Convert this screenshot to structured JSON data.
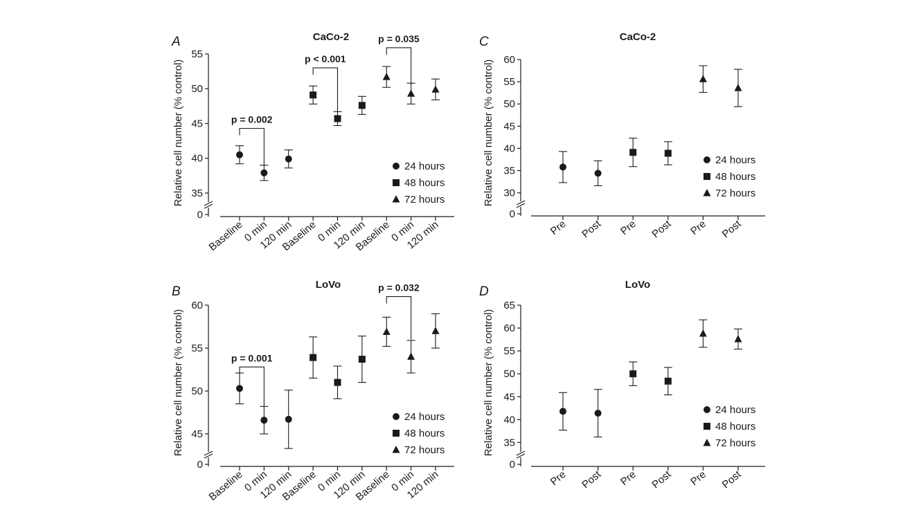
{
  "chart_data": [
    {
      "panel": "A",
      "type": "scatter",
      "title": "CaCo-2",
      "ylabel": "Relative cell number (% control)",
      "categories": [
        "Baseline",
        "0 min",
        "120 min",
        "Baseline",
        "0 min",
        "120 min",
        "Baseline",
        "0 min",
        "120 min"
      ],
      "yticks": [
        "0",
        "35",
        "40",
        "45",
        "50",
        "55"
      ],
      "ylim": [
        33.3,
        55
      ],
      "axis_break": true,
      "legend_position": "lower-right",
      "series": [
        {
          "name": "24 hours",
          "marker": "circle",
          "x_index": [
            0,
            1,
            2
          ],
          "values": [
            40.5,
            37.9,
            39.9
          ],
          "err": [
            1.3,
            1.1,
            1.3
          ]
        },
        {
          "name": "48 hours",
          "marker": "square",
          "x_index": [
            3,
            4,
            5
          ],
          "values": [
            49.1,
            45.7,
            47.6
          ],
          "err": [
            1.3,
            1.0,
            1.3
          ]
        },
        {
          "name": "72 hours",
          "marker": "triangle",
          "x_index": [
            6,
            7,
            8
          ],
          "values": [
            51.7,
            49.3,
            49.9
          ],
          "err": [
            1.5,
            1.5,
            1.5
          ]
        }
      ],
      "annotations": [
        {
          "text": "p = 0.002",
          "from": 0,
          "to": 1,
          "bracket_y": 44.3,
          "drop_to": 38.9
        },
        {
          "text": "p < 0.001",
          "from": 3,
          "to": 4,
          "bracket_y": 53.0,
          "drop_to": 46.7
        },
        {
          "text": "p = 0.035",
          "from": 6,
          "to": 7,
          "bracket_y": 55.9,
          "drop_to": 50.6
        }
      ]
    },
    {
      "panel": "B",
      "type": "scatter",
      "title": "LoVo",
      "ylabel": "Relative cell number (% control)",
      "categories": [
        "Baseline",
        "0 min",
        "120 min",
        "Baseline",
        "0 min",
        "120 min",
        "Baseline",
        "0 min",
        "120 min"
      ],
      "yticks": [
        "0",
        "45",
        "50",
        "55",
        "60"
      ],
      "ylim": [
        42.5,
        60
      ],
      "axis_break": true,
      "legend_position": "lower-right",
      "series": [
        {
          "name": "24 hours",
          "marker": "circle",
          "x_index": [
            0,
            1,
            2
          ],
          "values": [
            50.3,
            46.6,
            46.7
          ],
          "err": [
            1.8,
            1.6,
            3.4
          ]
        },
        {
          "name": "48 hours",
          "marker": "square",
          "x_index": [
            3,
            4,
            5
          ],
          "values": [
            53.9,
            51.0,
            53.7
          ],
          "err": [
            2.4,
            1.9,
            2.7
          ]
        },
        {
          "name": "72 hours",
          "marker": "triangle",
          "x_index": [
            6,
            7,
            8
          ],
          "values": [
            56.9,
            54.0,
            57.0
          ],
          "err": [
            1.7,
            1.9,
            2.0
          ]
        }
      ],
      "annotations": [
        {
          "text": "p = 0.001",
          "from": 0,
          "to": 1,
          "bracket_y": 52.8,
          "drop_to": 48.2
        },
        {
          "text": "p = 0.032",
          "from": 6,
          "to": 7,
          "bracket_y": 61.0,
          "drop_to": 56.0
        }
      ]
    },
    {
      "panel": "C",
      "type": "scatter",
      "title": "CaCo-2",
      "ylabel": "Relative cell number (% control)",
      "categories": [
        "Pre",
        "Post",
        "Pre",
        "Post",
        "Pre",
        "Post"
      ],
      "yticks": [
        "0",
        "30",
        "35",
        "40",
        "45",
        "50",
        "55",
        "60"
      ],
      "ylim": [
        28.7,
        60
      ],
      "axis_break": true,
      "legend_position": "lower-right",
      "series": [
        {
          "name": "24 hours",
          "marker": "circle",
          "x_index": [
            0,
            1
          ],
          "values": [
            35.8,
            34.4
          ],
          "err": [
            3.5,
            2.8
          ]
        },
        {
          "name": "48 hours",
          "marker": "square",
          "x_index": [
            2,
            3
          ],
          "values": [
            39.1,
            38.9
          ],
          "err": [
            3.2,
            2.6
          ]
        },
        {
          "name": "72 hours",
          "marker": "triangle",
          "x_index": [
            4,
            5
          ],
          "values": [
            55.6,
            53.6
          ],
          "err": [
            3.0,
            4.2
          ]
        }
      ],
      "annotations": []
    },
    {
      "panel": "D",
      "type": "scatter",
      "title": "LoVo",
      "ylabel": "Relative cell number (% control)",
      "categories": [
        "Pre",
        "Post",
        "Pre",
        "Post",
        "Pre",
        "Post"
      ],
      "yticks": [
        "0",
        "35",
        "40",
        "45",
        "50",
        "55",
        "60",
        "65"
      ],
      "ylim": [
        33.7,
        65
      ],
      "axis_break": true,
      "legend_position": "lower-right",
      "series": [
        {
          "name": "24 hours",
          "marker": "circle",
          "x_index": [
            0,
            1
          ],
          "values": [
            41.8,
            41.4
          ],
          "err": [
            4.1,
            5.2
          ]
        },
        {
          "name": "48 hours",
          "marker": "square",
          "x_index": [
            2,
            3
          ],
          "values": [
            50.0,
            48.4
          ],
          "err": [
            2.6,
            3.0
          ]
        },
        {
          "name": "72 hours",
          "marker": "triangle",
          "x_index": [
            4,
            5
          ],
          "values": [
            58.8,
            57.6
          ],
          "err": [
            3.0,
            2.2
          ]
        }
      ],
      "annotations": []
    }
  ]
}
